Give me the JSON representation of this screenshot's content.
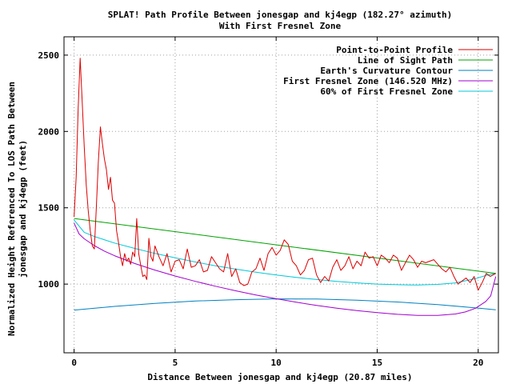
{
  "chart_data": {
    "type": "line",
    "title": "SPLAT! Path Profile Between jonesgap and kj4egp (182.27° azimuth)",
    "subtitle": "With First Fresnel Zone",
    "xlabel": "Distance Between jonesgap and kj4egp (20.87 miles)",
    "ylabel_line1": "Normalized Height Referenced To LOS Path Between",
    "ylabel_line2": "jonesgap and kj4egp (feet)",
    "xlim": [
      -0.5,
      21.0
    ],
    "ylim": [
      550,
      2620
    ],
    "xticks": [
      0,
      5,
      10,
      15,
      20
    ],
    "yticks": [
      1000,
      1500,
      2000,
      2500
    ],
    "grid": true,
    "legend_position": "top-right",
    "colors": {
      "profile": "#dd0000",
      "los": "#00a000",
      "curvature": "#0080c0",
      "fresnel": "#a000d0",
      "fresnel60": "#00c8d8"
    },
    "series": [
      {
        "name": "Point-to-Point Profile",
        "key": "profile",
        "x": [
          0.0,
          0.1,
          0.2,
          0.3,
          0.4,
          0.5,
          0.6,
          0.7,
          0.8,
          0.9,
          1.0,
          1.1,
          1.2,
          1.3,
          1.4,
          1.5,
          1.6,
          1.7,
          1.8,
          1.9,
          2.0,
          2.1,
          2.2,
          2.3,
          2.4,
          2.5,
          2.6,
          2.7,
          2.8,
          2.9,
          3.0,
          3.1,
          3.2,
          3.3,
          3.4,
          3.5,
          3.6,
          3.7,
          3.8,
          3.9,
          4.0,
          4.2,
          4.4,
          4.6,
          4.8,
          5.0,
          5.2,
          5.4,
          5.6,
          5.8,
          6.0,
          6.2,
          6.4,
          6.6,
          6.8,
          7.0,
          7.2,
          7.4,
          7.6,
          7.8,
          8.0,
          8.2,
          8.4,
          8.6,
          8.8,
          9.0,
          9.2,
          9.4,
          9.6,
          9.8,
          10.0,
          10.2,
          10.4,
          10.6,
          10.8,
          11.0,
          11.2,
          11.4,
          11.6,
          11.8,
          12.0,
          12.2,
          12.4,
          12.6,
          12.8,
          13.0,
          13.2,
          13.4,
          13.6,
          13.8,
          14.0,
          14.2,
          14.4,
          14.6,
          14.8,
          15.0,
          15.2,
          15.4,
          15.6,
          15.8,
          16.0,
          16.2,
          16.4,
          16.6,
          16.8,
          17.0,
          17.2,
          17.4,
          17.6,
          17.8,
          18.0,
          18.2,
          18.4,
          18.6,
          18.8,
          19.0,
          19.2,
          19.4,
          19.6,
          19.8,
          20.0,
          20.2,
          20.4,
          20.6,
          20.87
        ],
        "y": [
          1440,
          1700,
          2150,
          2480,
          2200,
          1900,
          1650,
          1480,
          1350,
          1250,
          1230,
          1500,
          1800,
          2030,
          1920,
          1820,
          1750,
          1620,
          1700,
          1550,
          1530,
          1350,
          1270,
          1180,
          1120,
          1200,
          1150,
          1170,
          1130,
          1210,
          1180,
          1430,
          1200,
          1120,
          1050,
          1060,
          1030,
          1300,
          1180,
          1150,
          1250,
          1180,
          1120,
          1200,
          1080,
          1150,
          1160,
          1100,
          1230,
          1110,
          1120,
          1160,
          1080,
          1090,
          1180,
          1140,
          1100,
          1080,
          1200,
          1050,
          1100,
          1010,
          990,
          1000,
          1080,
          1100,
          1170,
          1090,
          1200,
          1240,
          1190,
          1220,
          1290,
          1260,
          1150,
          1120,
          1060,
          1090,
          1160,
          1170,
          1060,
          1010,
          1050,
          1020,
          1110,
          1160,
          1090,
          1120,
          1180,
          1100,
          1150,
          1120,
          1210,
          1170,
          1180,
          1120,
          1190,
          1170,
          1140,
          1190,
          1170,
          1090,
          1140,
          1190,
          1160,
          1110,
          1150,
          1140,
          1150,
          1160,
          1130,
          1100,
          1080,
          1110,
          1050,
          1000,
          1020,
          1040,
          1010,
          1050,
          960,
          1010,
          1070,
          1050,
          1070
        ]
      },
      {
        "name": "Line of Sight Path",
        "key": "los",
        "x": [
          0,
          20.87
        ],
        "y": [
          1430,
          1070
        ]
      },
      {
        "name": "Earth's Curvature Contour",
        "key": "curvature",
        "x": [
          0,
          2,
          4,
          6,
          8,
          10,
          12,
          14,
          16,
          18,
          20,
          20.87
        ],
        "y": [
          830,
          854,
          874,
          889,
          898,
          903,
          902,
          895,
          883,
          866,
          843,
          832
        ]
      },
      {
        "name": "First Fresnel Zone (146.520 MHz)",
        "key": "fresnel",
        "x": [
          0,
          0.25,
          0.5,
          1,
          1.5,
          2,
          3,
          4,
          5,
          6,
          7,
          8,
          9,
          10,
          11,
          12,
          13,
          14,
          15,
          16,
          17,
          18,
          18.87,
          19.37,
          19.87,
          20.37,
          20.62,
          20.87
        ],
        "y": [
          1400,
          1328,
          1297,
          1252,
          1216,
          1186,
          1135,
          1092,
          1053,
          1018,
          986,
          956,
          929,
          904,
          881,
          860,
          842,
          826,
          813,
          802,
          795,
          795,
          804,
          818,
          842,
          886,
          923,
          1050
        ]
      },
      {
        "name": "60% of First Fresnel Zone",
        "key": "fresnel60",
        "x": [
          0,
          0.5,
          1,
          2,
          3,
          4,
          5,
          6,
          7,
          8,
          9,
          10,
          11,
          12,
          13,
          14,
          15,
          16,
          17,
          18,
          18.87,
          19.87,
          20.37,
          20.87
        ],
        "y": [
          1420,
          1339,
          1312,
          1269,
          1234,
          1201,
          1172,
          1145,
          1120,
          1098,
          1078,
          1060,
          1044,
          1030,
          1018,
          1008,
          1000,
          996,
          994,
          998,
          1008,
          1036,
          1056,
          1070
        ]
      }
    ]
  }
}
